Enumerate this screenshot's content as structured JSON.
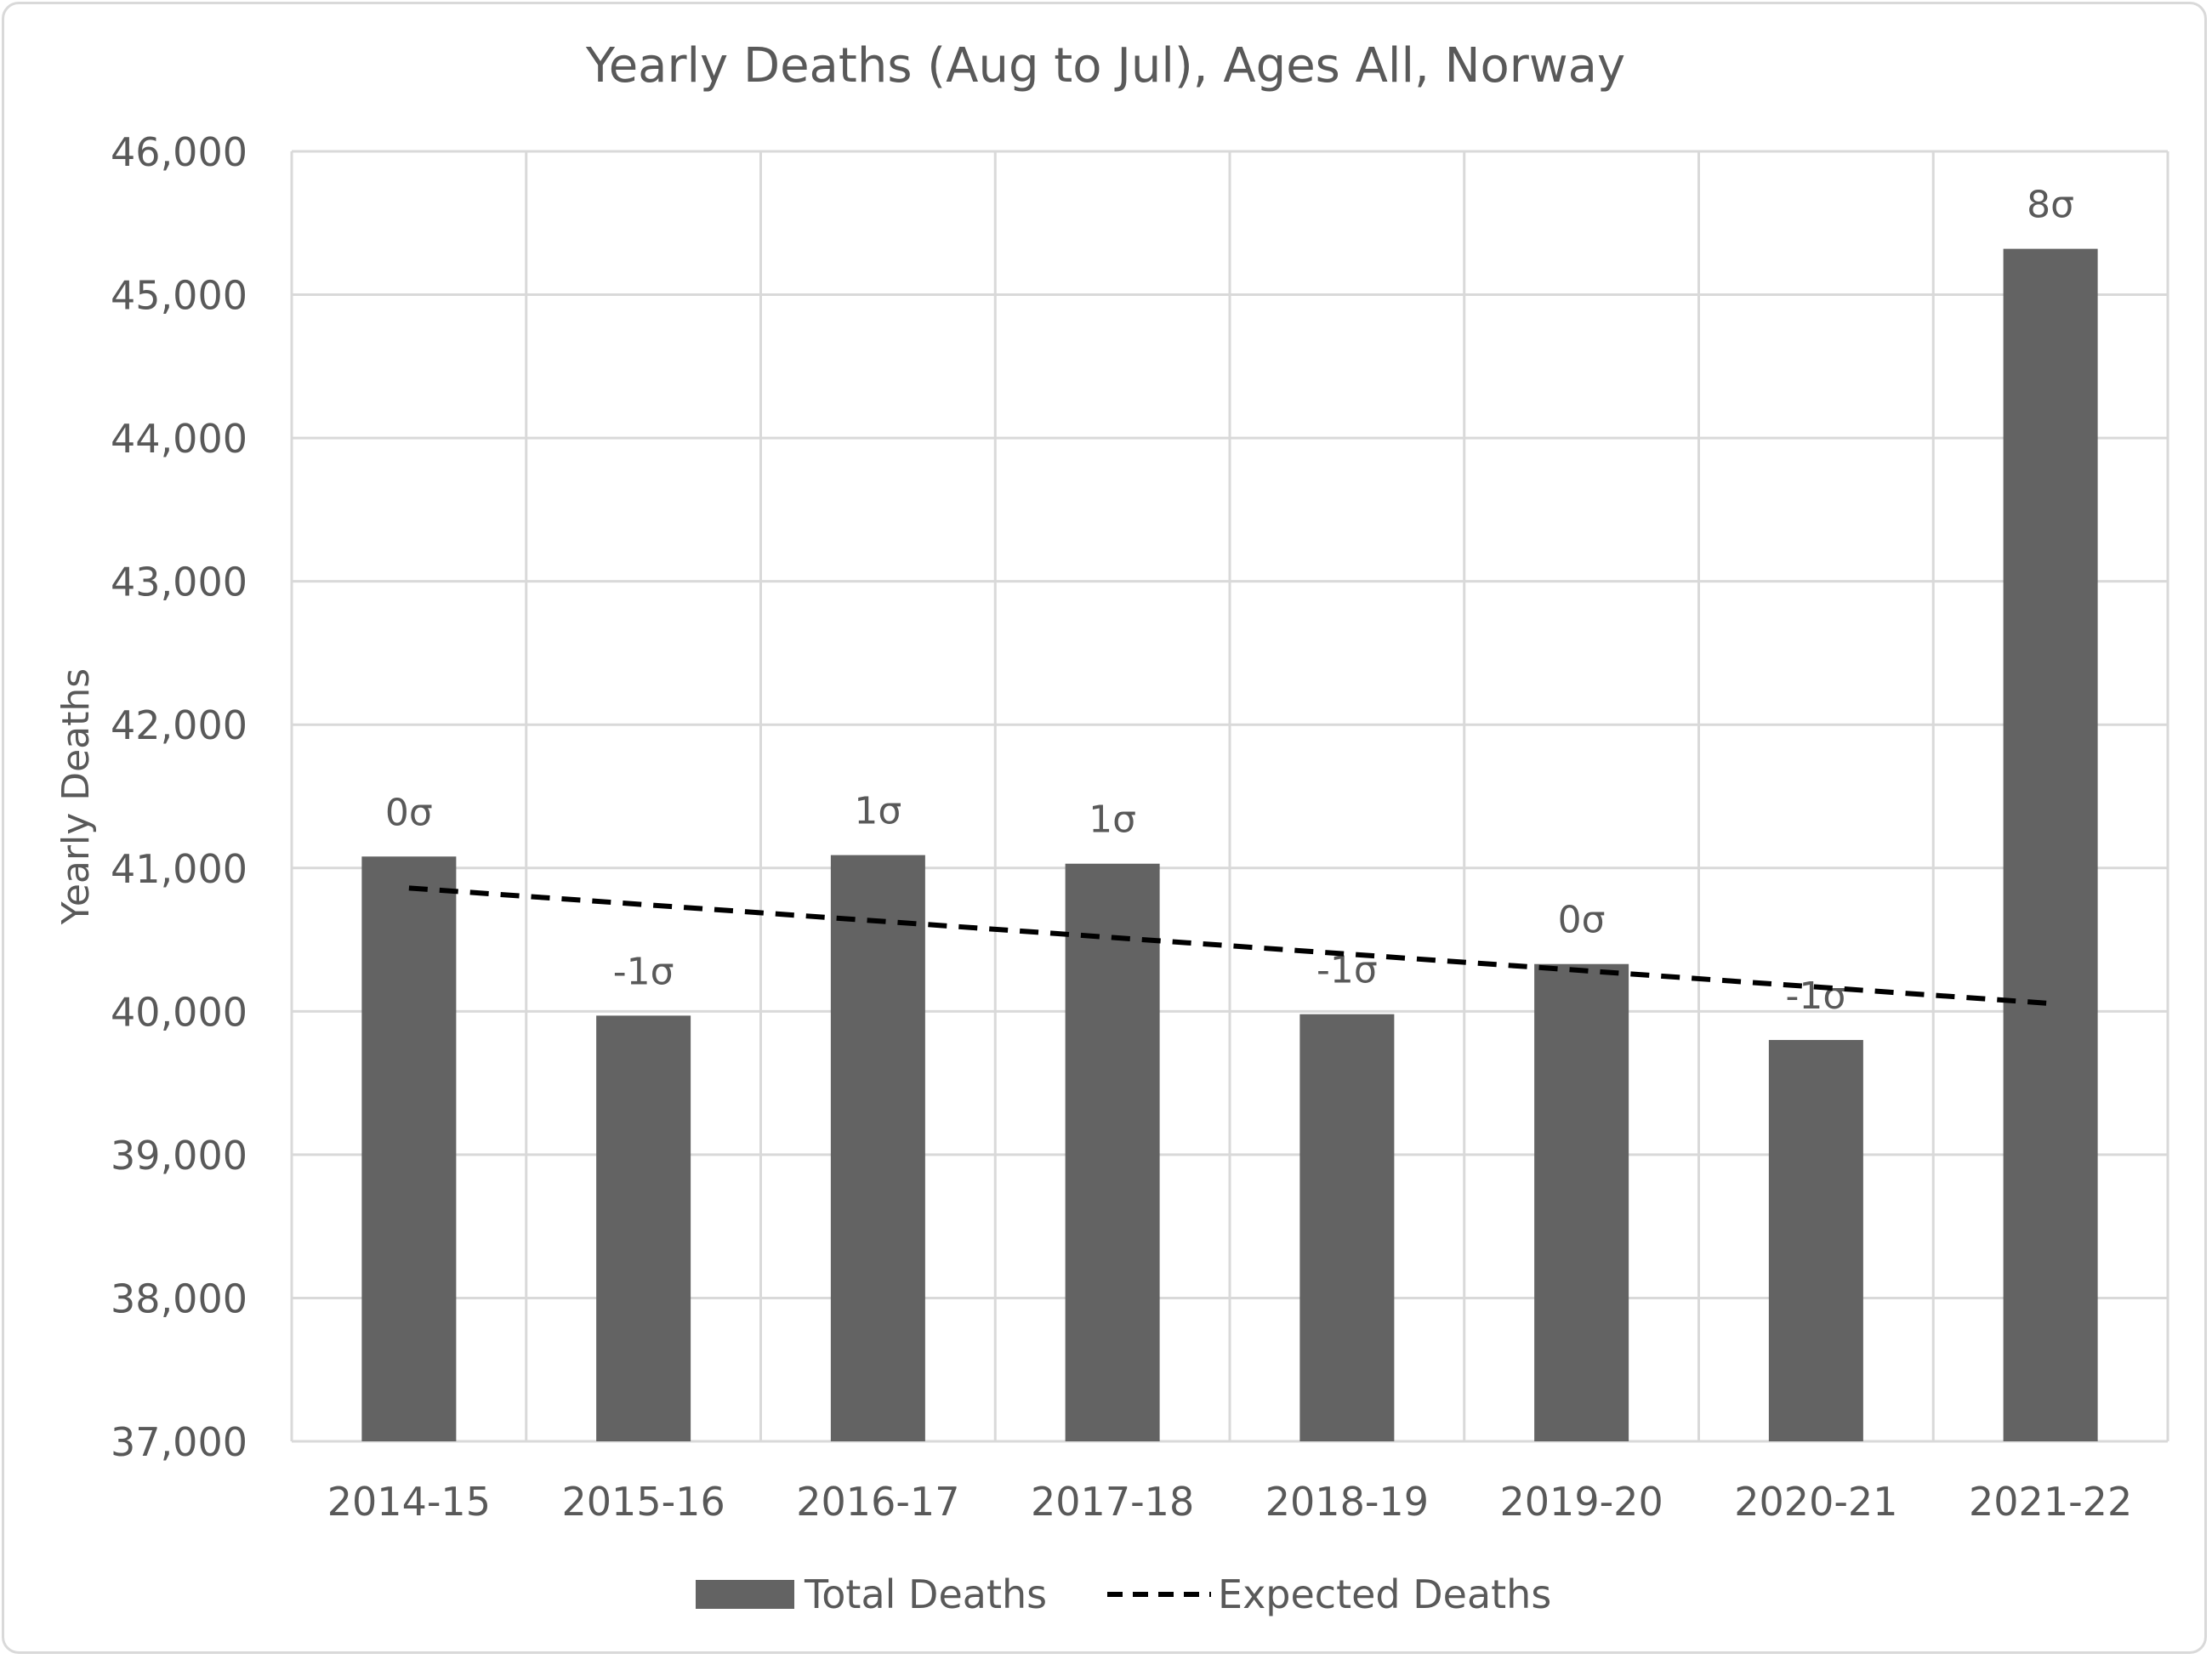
{
  "chart_data": {
    "type": "bar",
    "title": "Yearly Deaths (Aug to Jul), Ages All, Norway",
    "xlabel": "",
    "ylabel": "Yearly Deaths",
    "ylim": [
      37000,
      46000
    ],
    "yticks": [
      37000,
      38000,
      39000,
      40000,
      41000,
      42000,
      43000,
      44000,
      45000,
      46000
    ],
    "ytick_labels": [
      "37,000",
      "38,000",
      "39,000",
      "40,000",
      "41,000",
      "42,000",
      "43,000",
      "44,000",
      "45,000",
      "46,000"
    ],
    "categories": [
      "2014-15",
      "2015-16",
      "2016-17",
      "2017-18",
      "2018-19",
      "2019-20",
      "2020-21",
      "2021-22"
    ],
    "series": [
      {
        "name": "Total Deaths",
        "type": "bar",
        "color": "#636363",
        "values": [
          41080,
          39970,
          41090,
          41030,
          39980,
          40330,
          39800,
          45320
        ],
        "labels": [
          "0σ",
          "-1σ",
          "1σ",
          "1σ",
          "-1σ",
          "0σ",
          "-1σ",
          "8σ"
        ]
      },
      {
        "name": "Expected Deaths",
        "type": "line",
        "style": "dashed",
        "color": "#000000",
        "values": [
          40860,
          40745,
          40630,
          40515,
          40400,
          40285,
          40170,
          40055
        ]
      }
    ],
    "grid": true,
    "legend": "bottom",
    "colors": {
      "text": "#595959",
      "grid": "#d9d9d9",
      "bar": "#636363",
      "line": "#000000"
    }
  }
}
